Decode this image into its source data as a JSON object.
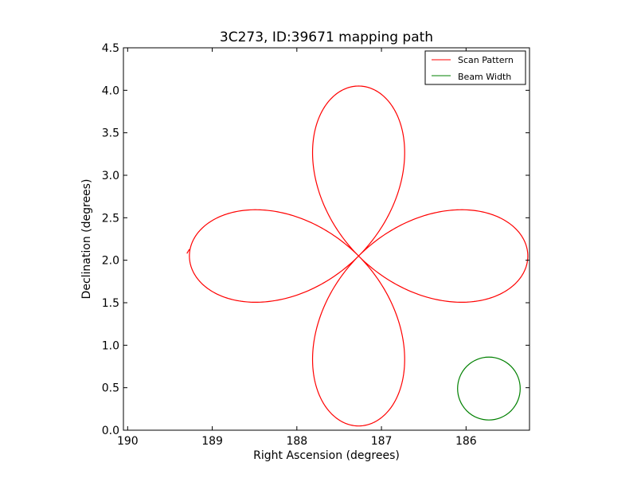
{
  "chart_data": {
    "type": "line",
    "title": "3C273, ID:39671 mapping path",
    "xlabel": "Right Ascension (degrees)",
    "ylabel": "Declination (degrees)",
    "xlim": [
      190.05,
      185.25
    ],
    "ylim": [
      0.0,
      4.5
    ],
    "x_ticks": [
      "190",
      "189",
      "188",
      "187",
      "186"
    ],
    "x_tick_values": [
      190,
      189,
      188,
      187,
      186
    ],
    "y_ticks": [
      "0.0",
      "0.5",
      "1.0",
      "1.5",
      "2.0",
      "2.5",
      "3.0",
      "3.5",
      "4.0",
      "4.5"
    ],
    "y_tick_values": [
      0.0,
      0.5,
      1.0,
      1.5,
      2.0,
      2.5,
      3.0,
      3.5,
      4.0,
      4.5
    ],
    "grid": false,
    "legend_position": "top-right",
    "series": [
      {
        "name": "Scan Pattern",
        "color": "#ff0000",
        "kind": "rose-curve",
        "center": {
          "ra": 187.27,
          "dec": 2.05
        },
        "amplitude": 2.0,
        "petals": 4,
        "start_ra": 189.3,
        "end_ra": 189.27
      },
      {
        "name": "Beam Width",
        "color": "#008000",
        "kind": "circle",
        "center": {
          "ra": 185.73,
          "dec": 0.49
        },
        "radius": 0.37
      }
    ]
  }
}
